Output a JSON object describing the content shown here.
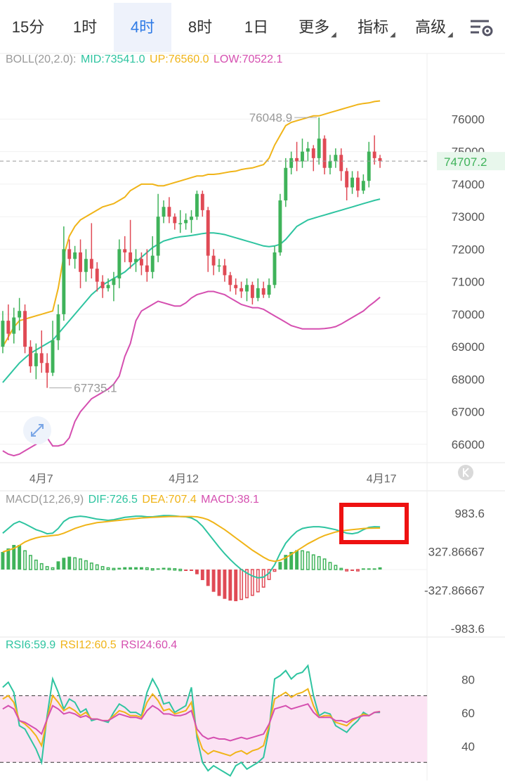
{
  "tabs": [
    {
      "label": "15分",
      "active": false
    },
    {
      "label": "1时",
      "active": false
    },
    {
      "label": "4时",
      "active": true
    },
    {
      "label": "8时",
      "active": false
    },
    {
      "label": "1日",
      "active": false
    },
    {
      "label": "更多",
      "active": false,
      "dropdown": true
    },
    {
      "label": "指标",
      "active": false,
      "dropdown": true
    },
    {
      "label": "高级",
      "active": false,
      "dropdown": true
    }
  ],
  "settings_icon": "chart-settings-icon",
  "boll_legend": {
    "name": "BOLL(20,2.0):",
    "mid": "MID:73541.0",
    "up": "UP:76560.0",
    "low": "LOW:70522.1"
  },
  "macd_legend": {
    "name": "MACD(12,26,9)",
    "dif": "DIF:726.5",
    "dea": "DEA:707.4",
    "macd": "MACD:38.1"
  },
  "rsi_legend": {
    "rsi6": "RSI6:59.9",
    "rsi12": "RSI12:60.5",
    "rsi24": "RSI24:60.4"
  },
  "colors": {
    "up": "#3fb35a",
    "down": "#e04a55",
    "mid": "#2ec4a0",
    "upper": "#f0b418",
    "lower": "#d54fb0",
    "rsi6": "#2ec4a0",
    "rsi12": "#f0b418",
    "rsi24": "#d54fb0",
    "highlight": "#ee1111",
    "rsi_band": "#fbe3f3"
  },
  "chart_data": [
    {
      "type": "candlestick",
      "x_labels": [
        "4月7",
        "4月12",
        "4月17"
      ],
      "y_ticks": [
        76000,
        75000,
        74000,
        73000,
        72000,
        71000,
        70000,
        69000,
        68000,
        67000,
        66000
      ],
      "ylim": [
        65500,
        77500
      ],
      "last_price_label": "74707.2",
      "annotations": {
        "max": "76048.9",
        "min": "67735.1"
      },
      "candles": [
        [
          69000,
          69800,
          68800,
          70100
        ],
        [
          69800,
          69400,
          69200,
          70300
        ],
        [
          69400,
          69900,
          69100,
          70200
        ],
        [
          69900,
          70100,
          69500,
          70500
        ],
        [
          70100,
          69000,
          68800,
          70300
        ],
        [
          69000,
          68400,
          68200,
          69200
        ],
        [
          68400,
          68800,
          68000,
          69100
        ],
        [
          68800,
          68500,
          68200,
          69500
        ],
        [
          68500,
          68200,
          67735.1,
          68800
        ],
        [
          68200,
          69200,
          68100,
          69800
        ],
        [
          69200,
          70000,
          68900,
          70300
        ],
        [
          70000,
          72000,
          69800,
          72700
        ],
        [
          72000,
          71700,
          71500,
          72300
        ],
        [
          71700,
          71900,
          71400,
          72100
        ],
        [
          71900,
          71300,
          70800,
          72300
        ],
        [
          71300,
          71700,
          71000,
          72000
        ],
        [
          71700,
          71400,
          71100,
          72800
        ],
        [
          71400,
          71000,
          70700,
          71600
        ],
        [
          71000,
          70800,
          70500,
          71200
        ],
        [
          70800,
          70900,
          70700,
          71100
        ],
        [
          70900,
          71100,
          70400,
          71300
        ],
        [
          71100,
          72000,
          70800,
          72300
        ],
        [
          72000,
          71900,
          71600,
          72400
        ],
        [
          71900,
          71600,
          71400,
          72900
        ],
        [
          71600,
          71700,
          71300,
          72000
        ],
        [
          71700,
          71500,
          71200,
          71900
        ],
        [
          71500,
          71300,
          71000,
          72000
        ],
        [
          71300,
          71800,
          71100,
          72400
        ],
        [
          71800,
          73000,
          71600,
          73700
        ],
        [
          73000,
          73300,
          72800,
          73500
        ],
        [
          73300,
          73000,
          72800,
          73600
        ],
        [
          73000,
          72800,
          72600,
          73100
        ],
        [
          72800,
          72800,
          72500,
          73200
        ],
        [
          72800,
          72900,
          72600,
          73100
        ],
        [
          72900,
          73000,
          72500,
          73200
        ],
        [
          73000,
          73700,
          72900,
          73800
        ],
        [
          73700,
          73200,
          73000,
          73800
        ],
        [
          73200,
          71800,
          71300,
          73300
        ],
        [
          71800,
          71500,
          71200,
          72000
        ],
        [
          71500,
          71500,
          71300,
          71700
        ],
        [
          71500,
          71200,
          71000,
          71700
        ],
        [
          71200,
          70900,
          70700,
          71300
        ],
        [
          70900,
          70800,
          70600,
          71100
        ],
        [
          70800,
          70700,
          70500,
          71000
        ],
        [
          70700,
          70900,
          70400,
          71100
        ],
        [
          70900,
          70500,
          70300,
          71000
        ],
        [
          70500,
          70800,
          70400,
          71100
        ],
        [
          70800,
          70600,
          70500,
          71000
        ],
        [
          70600,
          70900,
          70500,
          71100
        ],
        [
          70900,
          71900,
          70800,
          72100
        ],
        [
          71900,
          73500,
          71800,
          73700
        ],
        [
          73500,
          74500,
          73300,
          74800
        ],
        [
          74500,
          74800,
          74300,
          75000
        ],
        [
          74800,
          74700,
          74400,
          75300
        ],
        [
          74700,
          75000,
          74500,
          75400
        ],
        [
          75000,
          75100,
          74700,
          75300
        ],
        [
          75100,
          74800,
          74400,
          75200
        ],
        [
          74800,
          75400,
          74600,
          76048.9
        ],
        [
          75400,
          74500,
          74300,
          75500
        ],
        [
          74500,
          74700,
          74300,
          74900
        ],
        [
          74700,
          74900,
          74500,
          75100
        ],
        [
          74900,
          74400,
          74100,
          75100
        ],
        [
          74400,
          73900,
          73500,
          74500
        ],
        [
          73900,
          74200,
          73700,
          74400
        ],
        [
          74200,
          73800,
          73600,
          74400
        ],
        [
          73800,
          74100,
          73700,
          74300
        ],
        [
          74100,
          75000,
          73900,
          75300
        ],
        [
          75000,
          74800,
          74600,
          75500
        ],
        [
          74800,
          74707,
          74500,
          74900
        ]
      ],
      "boll_mid": [
        67900,
        68100,
        68300,
        68500,
        68650,
        68800,
        68900,
        69000,
        69100,
        69200,
        69400,
        69600,
        69800,
        70000,
        70200,
        70400,
        70600,
        70750,
        70900,
        71000,
        71100,
        71200,
        71300,
        71450,
        71600,
        71750,
        71900,
        72050,
        72150,
        72250,
        72300,
        72350,
        72380,
        72400,
        72420,
        72450,
        72480,
        72500,
        72500,
        72480,
        72450,
        72400,
        72350,
        72300,
        72250,
        72200,
        72150,
        72100,
        72080,
        72100,
        72150,
        72300,
        72500,
        72700,
        72800,
        72900,
        72950,
        73000,
        73050,
        73100,
        73150,
        73200,
        73250,
        73300,
        73350,
        73400,
        73450,
        73500,
        73541
      ],
      "boll_up": [
        69000,
        69300,
        69600,
        69800,
        69850,
        69900,
        69950,
        70000,
        70050,
        70100,
        70800,
        71800,
        72400,
        72700,
        72900,
        73000,
        73100,
        73200,
        73300,
        73350,
        73400,
        73500,
        73600,
        73800,
        73900,
        74000,
        74000,
        74000,
        73950,
        73950,
        74000,
        74050,
        74100,
        74150,
        74200,
        74250,
        74250,
        74300,
        74300,
        74320,
        74350,
        74380,
        74400,
        74450,
        74480,
        74500,
        74550,
        74600,
        74800,
        75200,
        75500,
        75800,
        75900,
        75950,
        76000,
        76050,
        76100,
        76100,
        76150,
        76200,
        76250,
        76300,
        76350,
        76400,
        76450,
        76480,
        76500,
        76540,
        76560
      ],
      "boll_low": [
        65800,
        65700,
        65650,
        65700,
        65800,
        65900,
        66000,
        66100,
        66200,
        65950,
        65950,
        66000,
        66200,
        66700,
        67000,
        67200,
        67400,
        67500,
        67600,
        67700,
        67850,
        68100,
        68700,
        69100,
        69800,
        70100,
        70200,
        70300,
        70400,
        70350,
        70300,
        70250,
        70250,
        70350,
        70500,
        70600,
        70650,
        70700,
        70700,
        70650,
        70600,
        70500,
        70400,
        70300,
        70250,
        70200,
        70200,
        70150,
        70050,
        69950,
        69850,
        69750,
        69650,
        69600,
        69550,
        69550,
        69550,
        69550,
        69560,
        69580,
        69620,
        69700,
        69800,
        69900,
        70000,
        70100,
        70250,
        70380,
        70522.1
      ]
    },
    {
      "type": "macd",
      "y_ticks": [
        "983.6",
        "327.86667",
        "-327.86667",
        "-983.6"
      ],
      "ylim": [
        -983.6,
        983.6
      ],
      "dif": [
        620,
        700,
        780,
        820,
        780,
        730,
        680,
        650,
        610,
        620,
        700,
        820,
        880,
        900,
        910,
        900,
        880,
        860,
        850,
        840,
        850,
        870,
        890,
        900,
        910,
        910,
        900,
        900,
        910,
        920,
        920,
        915,
        905,
        900,
        880,
        830,
        740,
        620,
        500,
        380,
        270,
        170,
        80,
        0,
        -60,
        -110,
        -140,
        -130,
        -60,
        80,
        280,
        450,
        560,
        650,
        700,
        720,
        730,
        730,
        720,
        700,
        680,
        650,
        620,
        610,
        630,
        680,
        720,
        730,
        726.5
      ],
      "dea": [
        300,
        330,
        360,
        410,
        470,
        510,
        540,
        560,
        570,
        580,
        590,
        620,
        660,
        700,
        730,
        760,
        780,
        800,
        810,
        820,
        830,
        840,
        850,
        860,
        870,
        880,
        885,
        890,
        895,
        900,
        905,
        905,
        905,
        905,
        905,
        900,
        880,
        850,
        800,
        740,
        680,
        610,
        540,
        470,
        400,
        330,
        270,
        210,
        160,
        140,
        160,
        200,
        260,
        320,
        380,
        440,
        490,
        540,
        580,
        610,
        640,
        660,
        670,
        680,
        690,
        700,
        705,
        707,
        707.4
      ],
      "hist": [
        300,
        360,
        420,
        420,
        320,
        240,
        160,
        100,
        50,
        30,
        140,
        200,
        220,
        200,
        180,
        150,
        110,
        80,
        50,
        30,
        20,
        30,
        40,
        40,
        40,
        40,
        30,
        15,
        20,
        30,
        20,
        15,
        5,
        -5,
        -20,
        -80,
        -180,
        -280,
        -380,
        -450,
        -500,
        -530,
        -540,
        -510,
        -480,
        -440,
        -380,
        -300,
        -170,
        -30,
        130,
        250,
        300,
        330,
        320,
        300,
        250,
        220,
        180,
        120,
        70,
        20,
        -10,
        -15,
        -5,
        20,
        20,
        20,
        38.1
      ],
      "volume_bars_hollow_last_n": 0
    },
    {
      "type": "rsi",
      "y_ticks": [
        80,
        60,
        40
      ],
      "ylim": [
        20,
        95
      ],
      "band": [
        30,
        70
      ],
      "rsi6": [
        75,
        78,
        72,
        52,
        50,
        44,
        38,
        30,
        58,
        80,
        72,
        62,
        68,
        66,
        60,
        62,
        55,
        56,
        55,
        54,
        60,
        65,
        63,
        60,
        60,
        58,
        72,
        80,
        74,
        65,
        66,
        60,
        62,
        64,
        75,
        45,
        30,
        25,
        28,
        26,
        24,
        22,
        28,
        30,
        26,
        28,
        30,
        33,
        50,
        80,
        82,
        85,
        80,
        83,
        84,
        88,
        70,
        58,
        60,
        59,
        52,
        50,
        48,
        52,
        55,
        60,
        58,
        60,
        59.9
      ],
      "rsi12": [
        68,
        70,
        66,
        55,
        53,
        50,
        46,
        40,
        56,
        70,
        66,
        61,
        63,
        61,
        58,
        60,
        56,
        56,
        55,
        55,
        58,
        61,
        60,
        58,
        58,
        57,
        66,
        71,
        67,
        61,
        62,
        59,
        60,
        61,
        66,
        47,
        38,
        35,
        37,
        36,
        35,
        34,
        36,
        37,
        35,
        37,
        38,
        40,
        52,
        68,
        70,
        72,
        69,
        71,
        72,
        74,
        64,
        57,
        58,
        58,
        54,
        53,
        52,
        55,
        57,
        59,
        58,
        60,
        60.5
      ],
      "rsi24": [
        62,
        64,
        62,
        55,
        54,
        52,
        50,
        47,
        56,
        64,
        62,
        59,
        60,
        59,
        57,
        58,
        56,
        56,
        55,
        55,
        57,
        59,
        58,
        57,
        57,
        56,
        61,
        64,
        62,
        59,
        59,
        58,
        58,
        59,
        61,
        50,
        46,
        44,
        45,
        44,
        44,
        43,
        44,
        45,
        44,
        45,
        46,
        47,
        53,
        62,
        63,
        64,
        62,
        63,
        64,
        65,
        60,
        57,
        57,
        57,
        55,
        55,
        54,
        56,
        57,
        58,
        58,
        60,
        60.4
      ]
    }
  ]
}
